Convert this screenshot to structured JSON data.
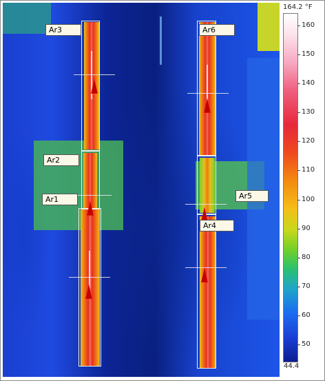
{
  "regions": [
    {
      "id": "ar3",
      "label": "Ar3"
    },
    {
      "id": "ar2",
      "label": "Ar2"
    },
    {
      "id": "ar1",
      "label": "Ar1"
    },
    {
      "id": "ar6",
      "label": "Ar6"
    },
    {
      "id": "ar5",
      "label": "Ar5"
    },
    {
      "id": "ar4",
      "label": "Ar4"
    }
  ],
  "scale": {
    "max_label": "164.2 °F",
    "min_label": "44.4",
    "ticks": [
      "160",
      "150",
      "140",
      "130",
      "120",
      "110",
      "100",
      "90",
      "80",
      "70",
      "60",
      "50"
    ]
  },
  "colors": {
    "cold": "#0d1d92",
    "hot": "#ffffff",
    "roi_border": "#f0f0e8",
    "marker": "#e01010",
    "label_bg": "#fbf8e8"
  },
  "icons": [
    "hot-spot-marker-icon"
  ]
}
